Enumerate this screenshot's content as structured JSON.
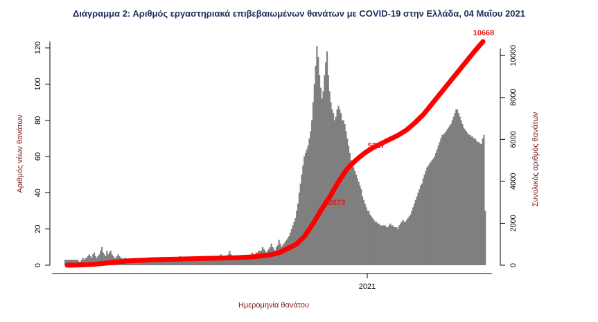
{
  "chart_data": {
    "type": "bar",
    "title": "Διάγραμμα 2: Αριθμός εργαστηριακά επιβεβαιωμένων θανάτων με COVID-19 στην Ελλάδα, 04 Μαΐου 2021",
    "xlabel": "Ημερομηνία θανάτου",
    "ylabel": "Αριθμός νέων θανάτων",
    "y2label": "Συνολικός αριθμός θανάτων",
    "x_tick_labels": [
      "2021"
    ],
    "yticks": [
      "0",
      "20",
      "40",
      "60",
      "80",
      "100",
      "120"
    ],
    "y2ticks": [
      "0",
      "2000",
      "4000",
      "6000",
      "8000",
      "10000"
    ],
    "ylim": [
      0,
      125
    ],
    "y2lim": [
      0,
      10800
    ],
    "series": [
      {
        "type": "bar",
        "color": "#7f7f7f",
        "values": [
          3,
          3,
          3,
          3,
          3,
          3,
          3,
          3,
          3,
          3,
          3,
          2,
          2,
          3,
          4,
          3,
          4,
          4,
          5,
          6,
          5,
          4,
          6,
          7,
          5,
          4,
          5,
          6,
          8,
          10,
          7,
          6,
          5,
          8,
          6,
          7,
          8,
          6,
          5,
          4,
          4,
          5,
          6,
          5,
          4,
          4,
          3,
          4,
          4,
          3,
          3,
          3,
          3,
          3,
          4,
          3,
          3,
          3,
          3,
          3,
          3,
          3,
          3,
          3,
          3,
          3,
          3,
          3,
          3,
          3,
          3,
          3,
          3,
          4,
          3,
          3,
          3,
          3,
          3,
          3,
          3,
          3,
          3,
          3,
          3,
          3,
          3,
          3,
          3,
          3,
          4,
          5,
          4,
          3,
          3,
          3,
          3,
          3,
          3,
          3,
          3,
          3,
          3,
          3,
          3,
          3,
          3,
          3,
          3,
          3,
          3,
          4,
          4,
          4,
          4,
          4,
          4,
          4,
          5,
          4,
          4,
          5,
          5,
          6,
          4,
          4,
          5,
          4,
          5,
          6,
          8,
          6,
          5,
          4,
          5,
          4,
          4,
          4,
          4,
          4,
          4,
          5,
          5,
          5,
          5,
          5,
          5,
          6,
          7,
          6,
          6,
          7,
          7,
          8,
          8,
          8,
          10,
          9,
          8,
          7,
          8,
          9,
          10,
          12,
          10,
          9,
          8,
          10,
          11,
          14,
          12,
          10,
          11,
          12,
          13,
          14,
          15,
          16,
          18,
          20,
          22,
          24,
          26,
          30,
          34,
          40,
          45,
          50,
          55,
          60,
          62,
          64,
          66,
          70,
          74,
          80,
          90,
          100,
          110,
          121,
          115,
          105,
          98,
          92,
          96,
          105,
          112,
          118,
          105,
          96,
          90,
          86,
          84,
          80,
          82,
          86,
          88,
          86,
          84,
          80,
          80,
          78,
          74,
          70,
          66,
          62,
          58,
          56,
          54,
          52,
          50,
          48,
          46,
          44,
          42,
          38,
          36,
          34,
          32,
          30,
          30,
          28,
          27,
          26,
          25,
          24,
          24,
          23,
          23,
          22,
          22,
          22,
          22,
          22,
          21,
          21,
          22,
          23,
          22,
          22,
          21,
          21,
          21,
          20,
          22,
          23,
          24,
          25,
          24,
          24,
          25,
          26,
          27,
          28,
          30,
          32,
          34,
          36,
          38,
          40,
          42,
          44,
          45,
          48,
          50,
          52,
          54,
          55,
          56,
          57,
          58,
          59,
          60,
          62,
          64,
          66,
          68,
          70,
          72,
          72,
          73,
          74,
          75,
          76,
          77,
          78,
          80,
          82,
          84,
          86,
          86,
          84,
          82,
          80,
          78,
          76,
          75,
          74,
          73,
          72,
          72,
          71,
          71,
          70,
          70,
          69,
          68,
          68,
          67,
          67,
          70,
          72,
          30
        ]
      },
      {
        "type": "line",
        "axis": "y2",
        "color": "#ff0000",
        "values": [
          0,
          10,
          20,
          40,
          80,
          120,
          160,
          200,
          220,
          240,
          260,
          270,
          280,
          290,
          300,
          310,
          320,
          330,
          340,
          350,
          360,
          380,
          400,
          450,
          500,
          600,
          800,
          1000,
          1400,
          2000,
          2673,
          3300,
          4000,
          4600,
          5000,
          5337,
          5600,
          5800,
          6000,
          6200,
          6450,
          6800,
          7200,
          7700,
          8200,
          8700,
          9200,
          9700,
          10200,
          10668
        ]
      }
    ],
    "annotations": [
      "2673",
      "5337",
      "10668"
    ],
    "legend": "none"
  }
}
